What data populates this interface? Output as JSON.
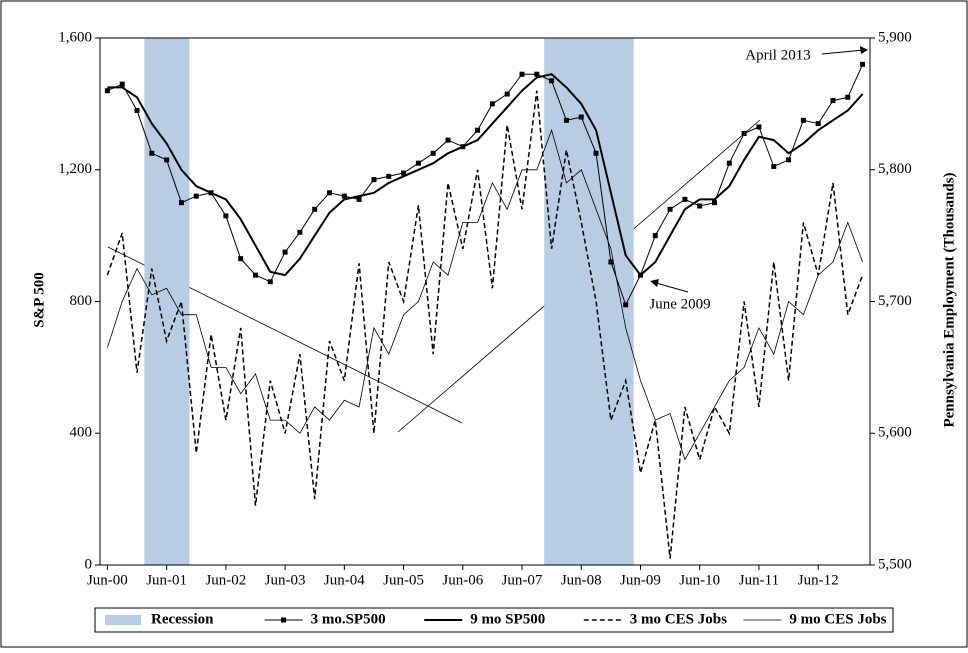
{
  "chart_data": {
    "type": "line",
    "y_label": "S&P 500",
    "y2_label": "Pennsylvania Employment (Thousands)",
    "categories": [
      "Jun-00",
      null,
      null,
      null,
      "Jun-01",
      null,
      null,
      null,
      "Jun-02",
      null,
      null,
      null,
      "Jun-03",
      null,
      null,
      null,
      "Jun-04",
      null,
      null,
      null,
      "Jun-05",
      null,
      null,
      null,
      "Jun-06",
      null,
      null,
      null,
      "Jun-07",
      null,
      null,
      null,
      "Jun-08",
      null,
      null,
      null,
      "Jun-09",
      null,
      null,
      null,
      "Jun-10",
      null,
      null,
      null,
      "Jun-11",
      null,
      null,
      null,
      "Jun-12",
      null,
      null,
      null
    ],
    "ylim": [
      0,
      1600
    ],
    "yticks": [
      0,
      400,
      800,
      {
        "value": 1200,
        "label": "1,200"
      },
      {
        "value": 1600,
        "label": "1,600"
      }
    ],
    "y2lim": [
      5500,
      5900
    ],
    "y2ticks": [
      {
        "value": 5500,
        "label": "5,500"
      },
      {
        "value": 5600,
        "label": "5,600"
      },
      {
        "value": 5700,
        "label": "5,700"
      },
      {
        "value": 5800,
        "label": "5,800"
      },
      {
        "value": 5900,
        "label": "5,900"
      }
    ],
    "series": [
      {
        "name": "Recession",
        "type": "bar",
        "color": "#b8cce4",
        "values": [
          null,
          null,
          null,
          1600,
          1600,
          1600,
          null,
          null,
          null,
          null,
          null,
          null,
          null,
          null,
          null,
          null,
          null,
          null,
          null,
          null,
          null,
          null,
          null,
          null,
          null,
          null,
          null,
          null,
          null,
          null,
          1600,
          1600,
          1600,
          1600,
          1600,
          1600,
          null,
          null,
          null,
          null,
          null,
          null,
          null,
          null,
          null,
          null,
          null,
          null,
          null,
          null,
          null,
          null
        ]
      },
      {
        "name": "3 mo.SP500",
        "color": "#000000",
        "style": "solid",
        "width": 1,
        "marker": "square",
        "values": [
          1440,
          1460,
          1380,
          1250,
          1230,
          1100,
          1120,
          1130,
          1060,
          930,
          880,
          860,
          950,
          1010,
          1080,
          1130,
          1120,
          1110,
          1170,
          1180,
          1190,
          1220,
          1250,
          1290,
          1270,
          1320,
          1400,
          1430,
          1490,
          1490,
          1470,
          1350,
          1360,
          1250,
          920,
          790,
          880,
          1000,
          1080,
          1110,
          1090,
          1100,
          1220,
          1310,
          1330,
          1210,
          1230,
          1350,
          1340,
          1410,
          1420,
          1520
        ]
      },
      {
        "name": "9 mo SP500",
        "color": "#000000",
        "style": "solid",
        "width": 2,
        "values": [
          1450,
          1450,
          1420,
          1340,
          1280,
          1200,
          1150,
          1130,
          1110,
          1050,
          970,
          890,
          880,
          930,
          1000,
          1070,
          1110,
          1120,
          1130,
          1160,
          1180,
          1200,
          1220,
          1250,
          1270,
          1290,
          1340,
          1390,
          1440,
          1480,
          1490,
          1450,
          1400,
          1320,
          1130,
          940,
          880,
          920,
          1000,
          1080,
          1110,
          1110,
          1150,
          1230,
          1300,
          1290,
          1250,
          1280,
          1320,
          1350,
          1380,
          1430
        ]
      },
      {
        "name": "3 mo CES Jobs",
        "axis": "y2",
        "color": "#000000",
        "style": "dashed",
        "width": 1.5,
        "values": [
          5720,
          5752,
          5646,
          5725,
          5670,
          5700,
          5585,
          5675,
          5610,
          5680,
          5545,
          5640,
          5600,
          5660,
          5550,
          5670,
          5640,
          5729,
          5600,
          5730,
          5700,
          5773,
          5660,
          5790,
          5740,
          5800,
          5710,
          5834,
          5770,
          5860,
          5740,
          5815,
          5760,
          5700,
          5610,
          5640,
          5570,
          5610,
          5505,
          5620,
          5580,
          5620,
          5600,
          5700,
          5620,
          5730,
          5640,
          5760,
          5720,
          5790,
          5690,
          5720
        ]
      },
      {
        "name": "9 mo CES Jobs",
        "axis": "y2",
        "color": "#000000",
        "style": "solid",
        "width": 0.8,
        "values": [
          5665,
          5700,
          5725,
          5705,
          5710,
          5690,
          5690,
          5650,
          5650,
          5630,
          5645,
          5610,
          5610,
          5600,
          5620,
          5610,
          5625,
          5620,
          5680,
          5660,
          5690,
          5700,
          5730,
          5720,
          5760,
          5760,
          5790,
          5770,
          5800,
          5800,
          5830,
          5790,
          5800,
          5770,
          5740,
          5680,
          5640,
          5610,
          5615,
          5580,
          5600,
          5620,
          5640,
          5650,
          5680,
          5660,
          5700,
          5690,
          5720,
          5730,
          5760,
          5730
        ]
      }
    ],
    "annotations": [
      "April 2013",
      "June 2009"
    ],
    "legend": "bottom"
  }
}
